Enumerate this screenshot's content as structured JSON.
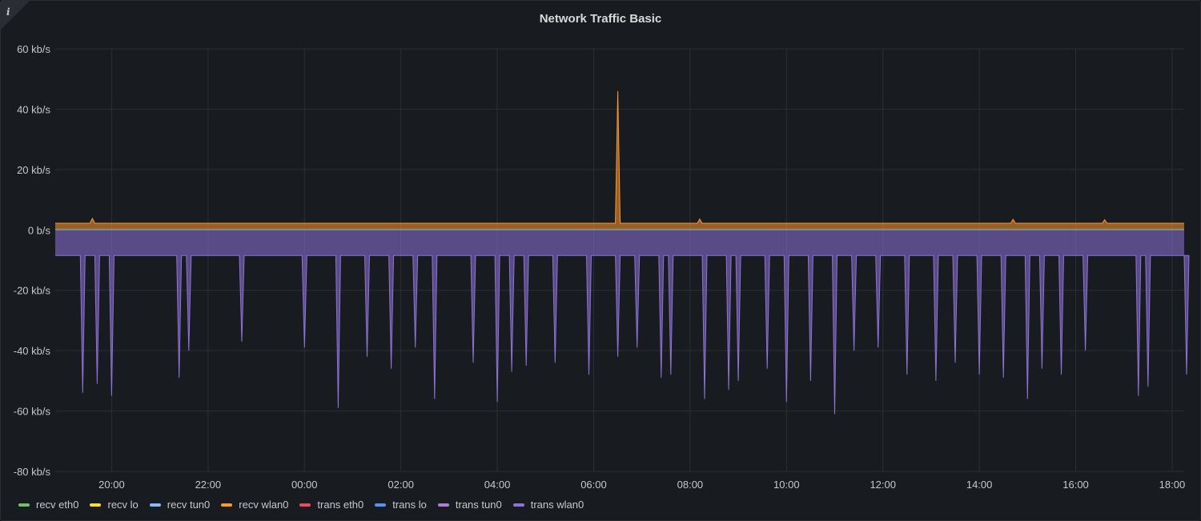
{
  "panel": {
    "info_icon": "i"
  },
  "chart_data": {
    "type": "area",
    "title": "Network Traffic Basic",
    "xlabel": "",
    "ylabel": "",
    "x_range": [
      "18:50",
      "18:15"
    ],
    "ylim": [
      -80,
      60
    ],
    "y_ticks": [
      "60 kb/s",
      "40 kb/s",
      "20 kb/s",
      "0 b/s",
      "-20 kb/s",
      "-40 kb/s",
      "-60 kb/s",
      "-80 kb/s"
    ],
    "y_tick_values": [
      60,
      40,
      20,
      0,
      -20,
      -40,
      -60,
      -80
    ],
    "x_ticks": [
      "20:00",
      "22:00",
      "00:00",
      "02:00",
      "04:00",
      "06:00",
      "08:00",
      "10:00",
      "12:00",
      "14:00",
      "16:00",
      "18:00"
    ],
    "x_tick_hours": [
      20,
      22,
      24,
      26,
      28,
      30,
      32,
      34,
      36,
      38,
      40,
      42
    ],
    "x_hours_min": 18.83,
    "x_hours_max": 42.25,
    "grid": true,
    "legend_position": "bottom-left",
    "series": [
      {
        "name": "recv eth0",
        "color": "#73bf69",
        "values": []
      },
      {
        "name": "recv lo",
        "color": "#fade2a",
        "values": []
      },
      {
        "name": "recv tun0",
        "color": "#8ab8ff",
        "values": []
      },
      {
        "name": "recv wlan0",
        "color": "#ff9830",
        "baseline": 2.2,
        "peaks": [
          [
            19.6,
            3.8
          ],
          [
            30.5,
            46
          ],
          [
            32.2,
            3.6
          ],
          [
            38.7,
            3.5
          ],
          [
            40.6,
            3.4
          ]
        ]
      },
      {
        "name": "trans eth0",
        "color": "#f2495c",
        "values": []
      },
      {
        "name": "trans lo",
        "color": "#5794f2",
        "values": []
      },
      {
        "name": "trans tun0",
        "color": "#b877d9",
        "values": []
      },
      {
        "name": "trans wlan0",
        "color": "#8f73d9",
        "baseline": -8.5,
        "dips": [
          [
            19.4,
            -54
          ],
          [
            19.7,
            -51
          ],
          [
            20.0,
            -55
          ],
          [
            21.4,
            -49
          ],
          [
            21.6,
            -40
          ],
          [
            22.7,
            -37
          ],
          [
            24.0,
            -39
          ],
          [
            24.7,
            -59
          ],
          [
            25.3,
            -42
          ],
          [
            25.8,
            -46
          ],
          [
            26.3,
            -39
          ],
          [
            26.7,
            -56
          ],
          [
            27.5,
            -44
          ],
          [
            28.0,
            -57
          ],
          [
            28.3,
            -47
          ],
          [
            28.6,
            -45
          ],
          [
            29.2,
            -44
          ],
          [
            29.9,
            -48
          ],
          [
            30.5,
            -42
          ],
          [
            30.9,
            -39
          ],
          [
            31.4,
            -49
          ],
          [
            31.6,
            -48
          ],
          [
            32.3,
            -56
          ],
          [
            32.8,
            -53
          ],
          [
            33.0,
            -50
          ],
          [
            33.6,
            -46
          ],
          [
            34.0,
            -57
          ],
          [
            34.5,
            -50
          ],
          [
            35.0,
            -61
          ],
          [
            35.4,
            -40
          ],
          [
            35.9,
            -39
          ],
          [
            36.5,
            -48
          ],
          [
            37.1,
            -50
          ],
          [
            37.5,
            -44
          ],
          [
            38.0,
            -48
          ],
          [
            38.5,
            -49
          ],
          [
            39.0,
            -56
          ],
          [
            39.3,
            -46
          ],
          [
            39.7,
            -48
          ],
          [
            40.2,
            -40
          ],
          [
            41.3,
            -55
          ],
          [
            41.5,
            -52
          ],
          [
            42.3,
            -48
          ]
        ]
      }
    ]
  }
}
